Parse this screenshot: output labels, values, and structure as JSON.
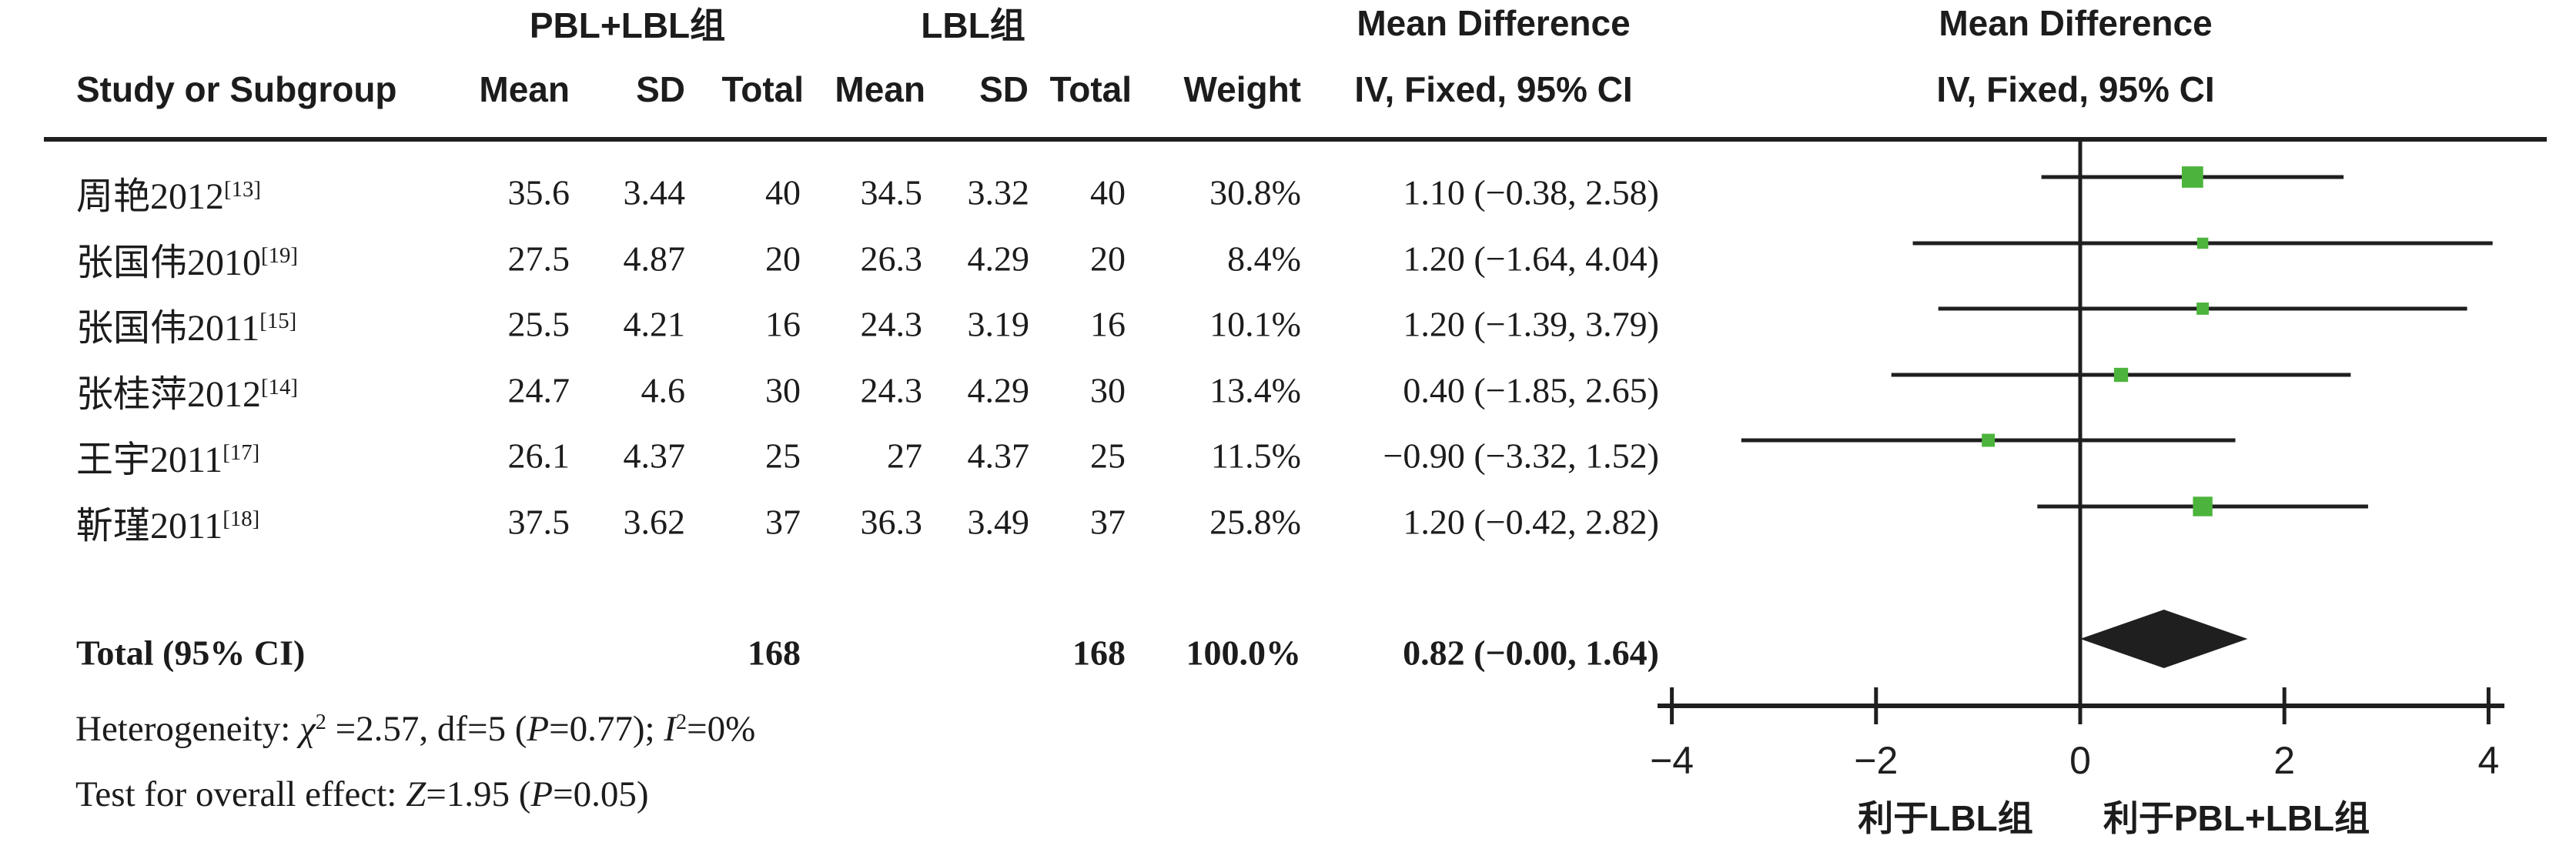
{
  "figure_headers": {
    "experimental_group": "PBL+LBL组",
    "control_group": "LBL组",
    "md_table": "Mean Difference",
    "md_plot": "Mean Difference",
    "study": "Study or Subgroup",
    "mean": "Mean",
    "sd": "SD",
    "total": "Total",
    "weight": "Weight",
    "ci_method": "IV, Fixed, 95% CI",
    "ci_method_plot": "IV, Fixed, 95% CI"
  },
  "rows": [
    {
      "study": "周艳2012",
      "ref": "[13]",
      "mean_exp": "35.6",
      "sd_exp": "3.44",
      "n_exp": "40",
      "mean_ctrl": "34.5",
      "sd_ctrl": "3.32",
      "n_ctrl": "40",
      "weight": "30.8%",
      "ci": "1.10 (−0.38, 2.58)"
    },
    {
      "study": "张国伟2010",
      "ref": "[19]",
      "mean_exp": "27.5",
      "sd_exp": "4.87",
      "n_exp": "20",
      "mean_ctrl": "26.3",
      "sd_ctrl": "4.29",
      "n_ctrl": "20",
      "weight": "8.4%",
      "ci": "1.20 (−1.64, 4.04)"
    },
    {
      "study": "张国伟2011",
      "ref": "[15]",
      "mean_exp": "25.5",
      "sd_exp": "4.21",
      "n_exp": "16",
      "mean_ctrl": "24.3",
      "sd_ctrl": "3.19",
      "n_ctrl": "16",
      "weight": "10.1%",
      "ci": "1.20 (−1.39, 3.79)"
    },
    {
      "study": "张桂萍2012",
      "ref": "[14]",
      "mean_exp": "24.7",
      "sd_exp": "4.6",
      "n_exp": "30",
      "mean_ctrl": "24.3",
      "sd_ctrl": "4.29",
      "n_ctrl": "30",
      "weight": "13.4%",
      "ci": "0.40 (−1.85, 2.65)"
    },
    {
      "study": "王宇2011",
      "ref": "[17]",
      "mean_exp": "26.1",
      "sd_exp": "4.37",
      "n_exp": "25",
      "mean_ctrl": "27",
      "sd_ctrl": "4.37",
      "n_ctrl": "25",
      "weight": "11.5%",
      "ci": "−0.90 (−3.32, 1.52)"
    },
    {
      "study": "靳瑾2011",
      "ref": "[18]",
      "mean_exp": "37.5",
      "sd_exp": "3.62",
      "n_exp": "37",
      "mean_ctrl": "36.3",
      "sd_ctrl": "3.49",
      "n_ctrl": "37",
      "weight": "25.8%",
      "ci": "1.20 (−0.42, 2.82)"
    }
  ],
  "total_row": {
    "label": "Total (95% CI)",
    "n_exp": "168",
    "n_ctrl": "168",
    "weight": "100.0%",
    "ci": "0.82 (−0.00, 1.64)"
  },
  "stats_lines": [
    {
      "segments": [
        {
          "t": "Heterogeneity: "
        },
        {
          "t": "χ",
          "i": 1
        },
        {
          "t": "2",
          "sup": 1
        },
        {
          "t": " =2.57, df=5 ("
        },
        {
          "t": "P",
          "i": 1
        },
        {
          "t": "=0.77); "
        },
        {
          "t": "I",
          "i": 1
        },
        {
          "t": "2",
          "sup": 1
        },
        {
          "t": "=0%"
        }
      ]
    },
    {
      "segments": [
        {
          "t": "Test for overall effect: "
        },
        {
          "t": "Z",
          "i": 1
        },
        {
          "t": "=1.95 ("
        },
        {
          "t": "P",
          "i": 1
        },
        {
          "t": "=0.05)"
        }
      ]
    }
  ],
  "chart_data": {
    "type": "forest",
    "effect_measure": "Mean Difference (IV, Fixed, 95% CI)",
    "studies": [
      {
        "name": "周艳2012",
        "md": 1.1,
        "ci_low": -0.38,
        "ci_high": 2.58,
        "weight_pct": 30.8
      },
      {
        "name": "张国伟2010",
        "md": 1.2,
        "ci_low": -1.64,
        "ci_high": 4.04,
        "weight_pct": 8.4
      },
      {
        "name": "张国伟2011",
        "md": 1.2,
        "ci_low": -1.39,
        "ci_high": 3.79,
        "weight_pct": 10.1
      },
      {
        "name": "张桂萍2012",
        "md": 0.4,
        "ci_low": -1.85,
        "ci_high": 2.65,
        "weight_pct": 13.4
      },
      {
        "name": "王宇2011",
        "md": -0.9,
        "ci_low": -3.32,
        "ci_high": 1.52,
        "weight_pct": 11.5
      },
      {
        "name": "靳瑾2011",
        "md": 1.2,
        "ci_low": -0.42,
        "ci_high": 2.82,
        "weight_pct": 25.8
      }
    ],
    "total": {
      "md": 0.82,
      "ci_low": 0.0,
      "ci_high": 1.64
    },
    "axis": {
      "min": -4,
      "max": 4,
      "ticks": [
        -4,
        -2,
        0,
        2,
        4
      ],
      "tick_labels": [
        "−4",
        "−2",
        "0",
        "2",
        "4"
      ]
    },
    "footer_labels": {
      "left": "利于LBL组",
      "right": "利于PBL+LBL组"
    },
    "colors": {
      "square": "#4cb43c",
      "diamond": "#1f1f1f",
      "line": "#1f1f1f"
    }
  }
}
